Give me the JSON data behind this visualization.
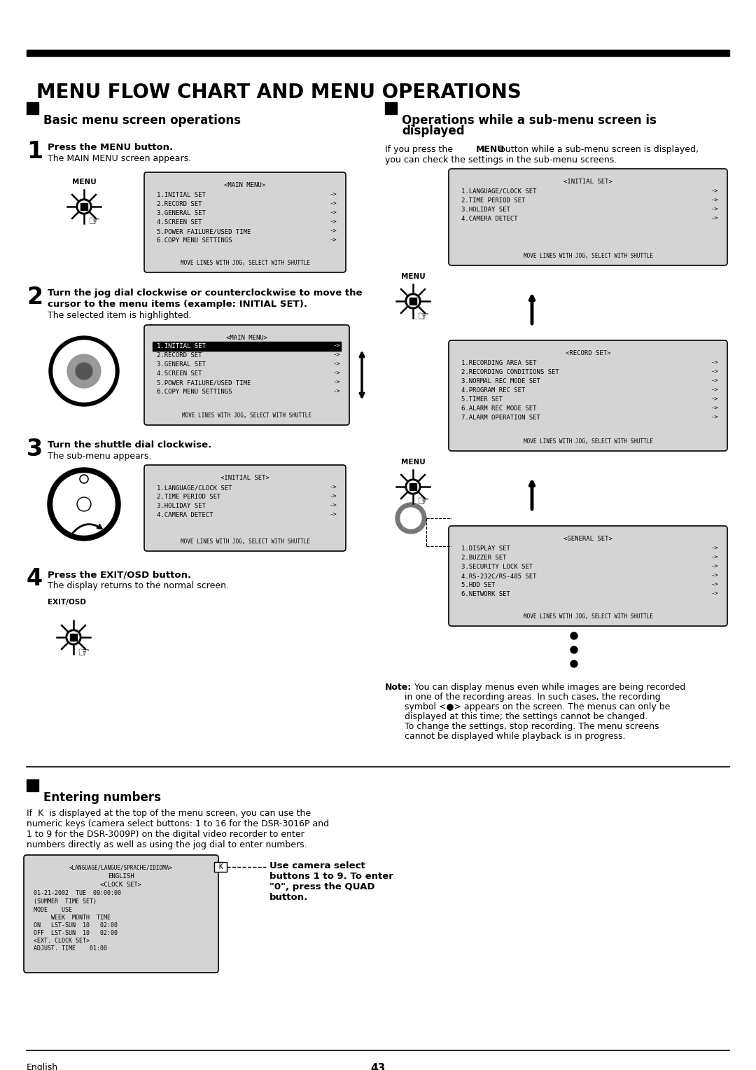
{
  "title": "MENU FLOW CHART AND MENU OPERATIONS",
  "bg_color": "#ffffff",
  "menu_bg": "#d4d4d4",
  "page_number": "43",
  "footer_left": "English",
  "main_menu_items": [
    "1.INITIAL SET",
    "2.RECORD SET",
    "3.GENERAL SET",
    "4.SCREEN SET",
    "5.POWER FAILURE/USED TIME",
    "6.COPY MENU SETTINGS"
  ],
  "initial_set_items": [
    "1.LANGUAGE/CLOCK SET",
    "2.TIME PERIOD SET",
    "3.HOLIDAY SET",
    "4.CAMERA DETECT"
  ],
  "record_set_items": [
    "1.RECORDING AREA SET",
    "2.RECORDING CONDITIONS SET",
    "3.NORMAL REC MODE SET",
    "4.PROGRAM REC SET",
    "5.TIMER SET",
    "6.ALARM REC MODE SET",
    "7.ALARM OPERATION SET"
  ],
  "general_set_items": [
    "1.DISPLAY SET",
    "2.BUZZER SET",
    "3.SECURITY LOCK SET",
    "4.RS-232C/RS-485 SET",
    "5.HDD SET",
    "6.NETWORK SET"
  ],
  "shuttle_footer": "MOVE LINES WITH JOG, SELECT WITH SHUTTLE"
}
